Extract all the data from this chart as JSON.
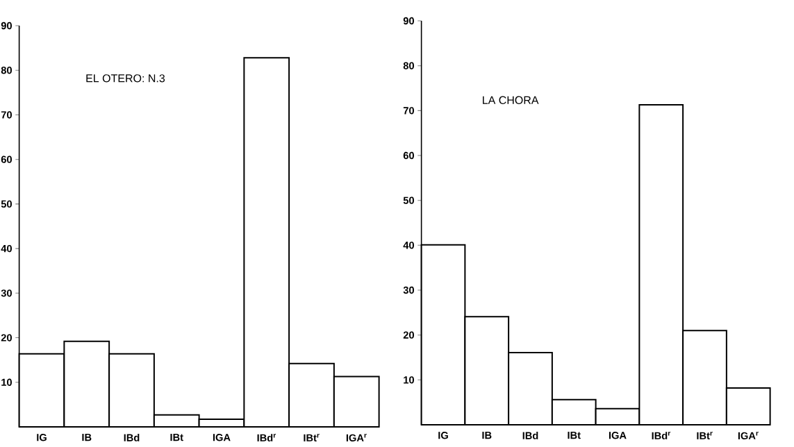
{
  "chart_data": [
    {
      "type": "bar",
      "title": "EL OTERO: N.3",
      "categories": [
        "IG",
        "IB",
        "IBd",
        "IBt",
        "IGA",
        "IBd$^{r}$",
        "IBt$^{r}$",
        "IGA$^{r}$"
      ],
      "values": [
        16.4,
        19.2,
        16.4,
        2.7,
        1.7,
        82.8,
        14.2,
        11.3
      ],
      "ylim": [
        0,
        90
      ],
      "yticks": [
        10,
        20,
        30,
        40,
        50,
        60,
        70,
        80,
        90
      ],
      "grid": false
    },
    {
      "type": "bar",
      "title": "LA CHORA",
      "categories": [
        "IG",
        "IB",
        "IBd",
        "IBt",
        "IGA",
        "IBd$^{r}$",
        "IBt$^{r}$",
        "IGA$^{r}$"
      ],
      "values": [
        40.1,
        24.1,
        16.1,
        5.6,
        3.6,
        71.3,
        21.0,
        8.2
      ],
      "ylim": [
        0,
        90
      ],
      "yticks": [
        10,
        20,
        30,
        40,
        50,
        60,
        70,
        80,
        90
      ],
      "grid": false
    }
  ]
}
